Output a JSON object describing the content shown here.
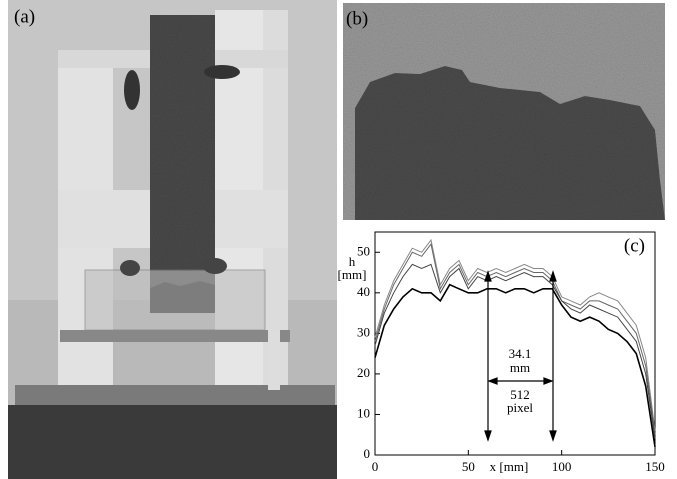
{
  "panels": {
    "a": {
      "label": "(a)"
    },
    "b": {
      "label": "(b)"
    }
  },
  "chart_data": {
    "type": "line",
    "panel_label": "(c)",
    "ylabel": [
      "h",
      "[mm]"
    ],
    "xlabel": "x [mm]",
    "annotations": [
      "34.1",
      "mm",
      "512",
      "pixel"
    ],
    "x": [
      0,
      5,
      10,
      15,
      20,
      25,
      30,
      35,
      40,
      45,
      50,
      55,
      60,
      65,
      70,
      75,
      80,
      85,
      90,
      95,
      100,
      105,
      110,
      115,
      120,
      125,
      130,
      135,
      140,
      145,
      150
    ],
    "series": [
      {
        "color": "#888888",
        "values": [
          29,
          37,
          43,
          47,
          51,
          50,
          53,
          42,
          46,
          48,
          43,
          46,
          45,
          46,
          45,
          46,
          47,
          46,
          46,
          44,
          39,
          38,
          37,
          39,
          40,
          39,
          38,
          35,
          32,
          24,
          6
        ]
      },
      {
        "color": "#666666",
        "values": [
          28,
          36,
          42,
          46,
          50,
          49,
          52,
          41,
          45,
          47,
          42,
          45,
          44,
          45,
          44,
          45,
          46,
          45,
          45,
          43,
          38,
          37,
          36,
          38,
          38,
          37,
          36,
          33,
          30,
          22,
          5
        ]
      },
      {
        "color": "#444444",
        "values": [
          27,
          35,
          40,
          44,
          47,
          46,
          47,
          40,
          44,
          46,
          41,
          44,
          43,
          44,
          43,
          44,
          45,
          44,
          44,
          42,
          38,
          36,
          35,
          37,
          36,
          35,
          34,
          31,
          28,
          20,
          4
        ]
      },
      {
        "color": "#000000",
        "values": [
          24,
          32,
          36,
          39,
          41,
          40,
          40,
          38,
          42,
          41,
          40,
          40,
          41,
          41,
          40,
          41,
          41,
          40,
          41,
          41,
          37,
          34,
          33,
          34,
          33,
          31,
          30,
          28,
          25,
          17,
          2
        ]
      }
    ],
    "xlim": [
      0,
      150
    ],
    "ylim": [
      0,
      55
    ],
    "xticks": [
      0,
      50,
      100,
      150
    ],
    "yticks": [
      0,
      10,
      20,
      30,
      40,
      50
    ],
    "grid": false
  }
}
